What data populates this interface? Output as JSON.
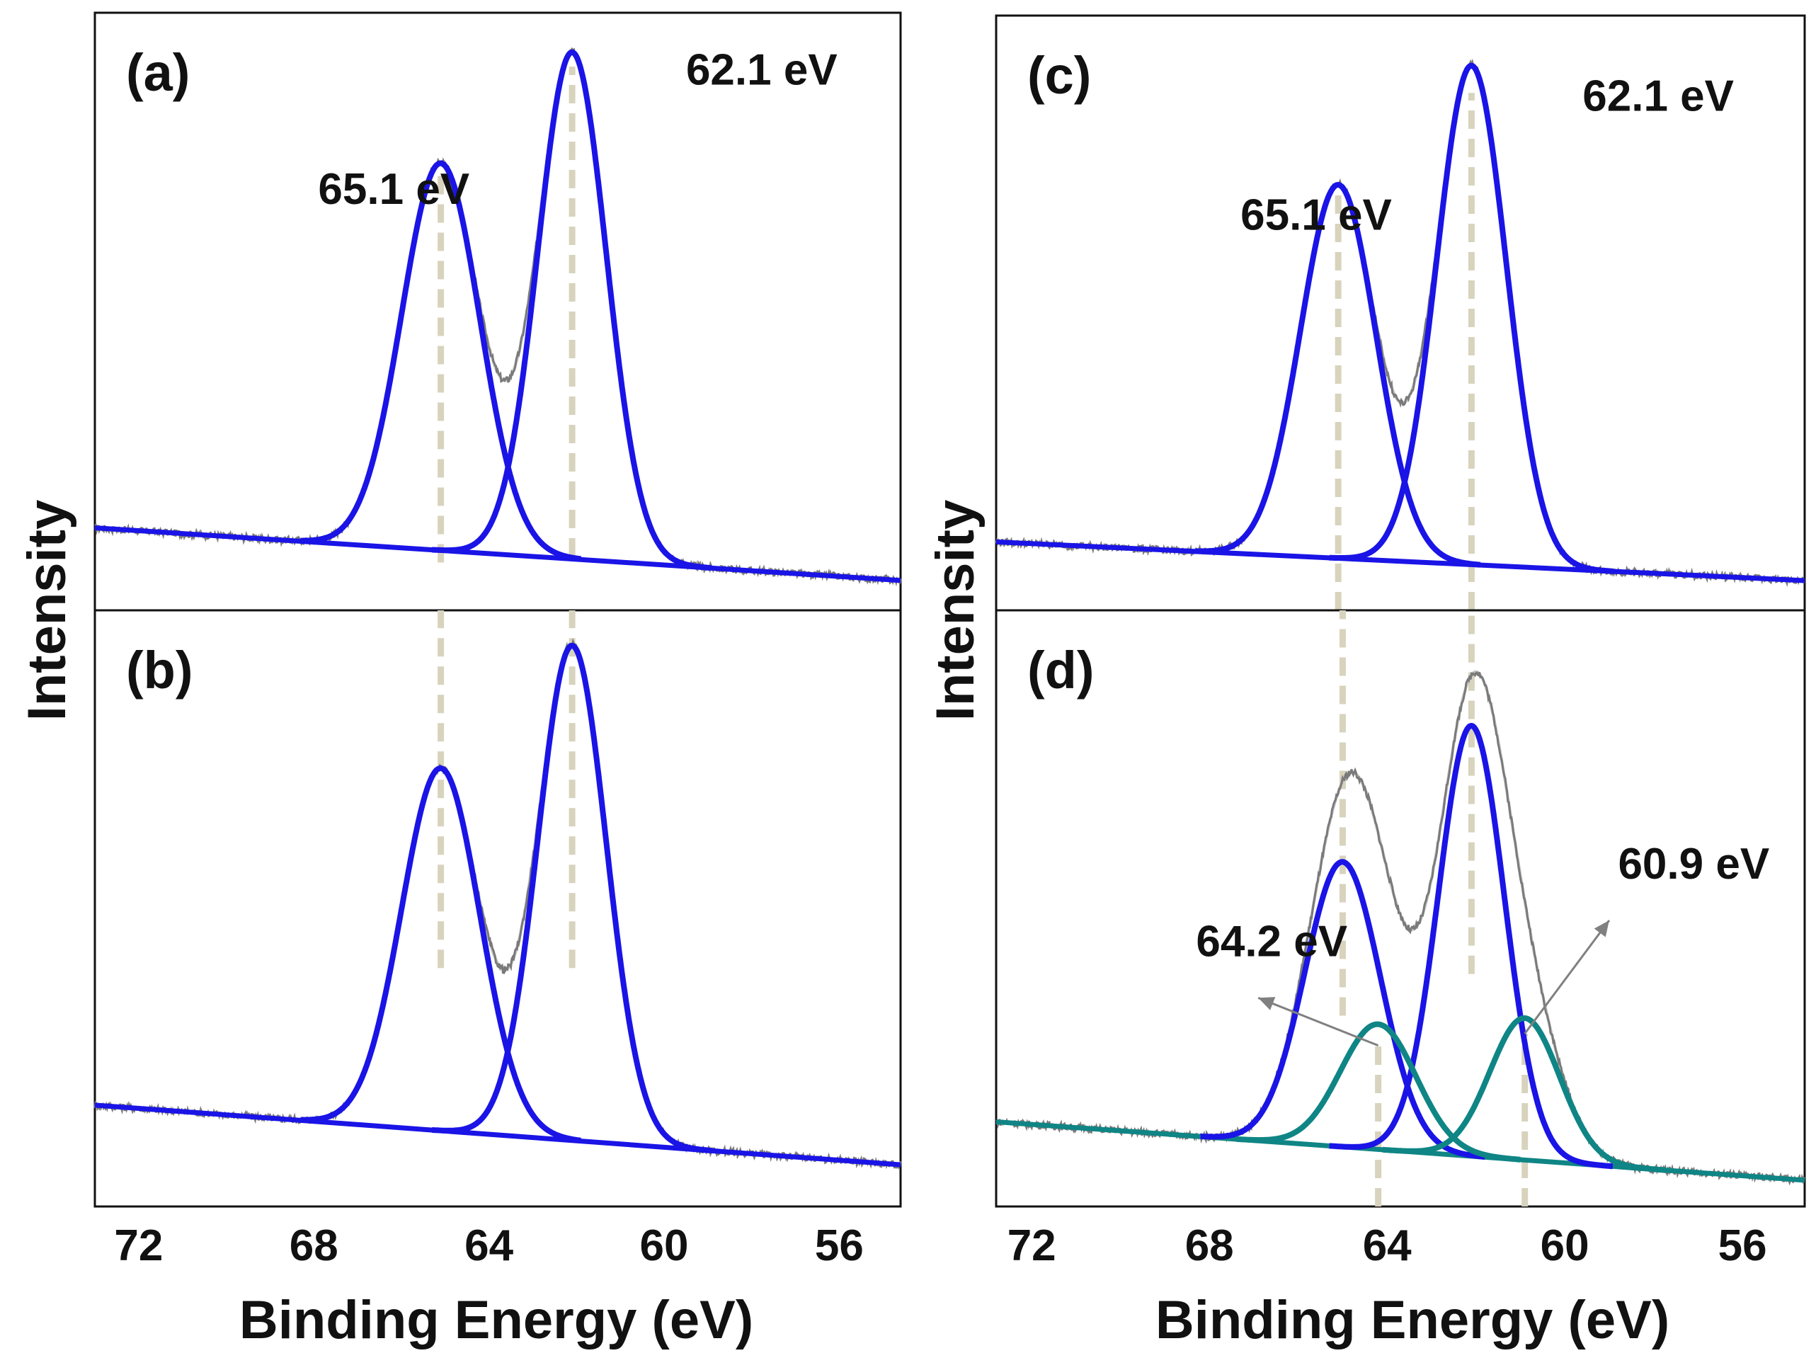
{
  "chart_data": [
    {
      "type": "line",
      "panel_label": "(a)",
      "x_reversed": true,
      "xlim": [
        73.0,
        54.6
      ],
      "ylim": [
        0,
        1
      ],
      "background": [
        [
          73.0,
          0.138
        ],
        [
          54.6,
          0.05
        ]
      ],
      "peaks": [
        {
          "name": "component 1",
          "center": 65.1,
          "height": 0.648,
          "fwhm": 2.1,
          "color": "#1a14e6"
        },
        {
          "name": "component 2",
          "center": 62.1,
          "height": 0.848,
          "fwhm": 1.84,
          "color": "#1a14e6"
        }
      ],
      "guide_lines": [
        {
          "x": 65.1,
          "y_range": [
            0.08,
            0.74
          ]
        },
        {
          "x": 62.1,
          "y_range": [
            0.09,
            0.91
          ]
        }
      ],
      "annotations": [
        {
          "text": "65.1 eV",
          "x": 67.9,
          "y": 0.68
        },
        {
          "text": "62.1 eV",
          "x": 59.5,
          "y": 0.88
        }
      ]
    },
    {
      "type": "line",
      "panel_label": "(b)",
      "x_reversed": true,
      "xlim": [
        73.0,
        54.6
      ],
      "ylim": [
        0,
        1
      ],
      "background": [
        [
          73.0,
          0.17
        ],
        [
          54.6,
          0.07
        ]
      ],
      "peaks": [
        {
          "name": "component 1",
          "center": 65.1,
          "height": 0.608,
          "fwhm": 2.1,
          "color": "#1a14e6"
        },
        {
          "name": "component 2",
          "center": 62.1,
          "height": 0.83,
          "fwhm": 1.84,
          "color": "#1a14e6"
        }
      ],
      "guide_lines": [
        {
          "x": 65.1,
          "y_range": [
            0.4,
            1.0
          ]
        },
        {
          "x": 62.1,
          "y_range": [
            0.4,
            1.0
          ]
        }
      ]
    },
    {
      "type": "line",
      "panel_label": "(c)",
      "x_reversed": true,
      "xlim": [
        72.8,
        54.6
      ],
      "ylim": [
        0,
        1
      ],
      "background": [
        [
          72.8,
          0.115
        ],
        [
          54.6,
          0.05
        ]
      ],
      "peaks": [
        {
          "name": "component 1",
          "center": 65.1,
          "height": 0.628,
          "fwhm": 2.0,
          "color": "#1a14e6"
        },
        {
          "name": "component 2",
          "center": 62.1,
          "height": 0.839,
          "fwhm": 1.85,
          "color": "#1a14e6"
        }
      ],
      "guide_lines": [
        {
          "x": 65.1,
          "y_range": [
            0.0,
            0.7
          ]
        },
        {
          "x": 62.1,
          "y_range": [
            0.0,
            0.87
          ]
        }
      ],
      "annotations": [
        {
          "text": "65.1 eV",
          "x": 67.3,
          "y": 0.64
        },
        {
          "text": "62.1 eV",
          "x": 59.6,
          "y": 0.84
        }
      ]
    },
    {
      "type": "line",
      "panel_label": "(d)",
      "x_reversed": true,
      "xlim": [
        72.8,
        54.6
      ],
      "xticks": [
        72,
        68,
        64,
        60,
        56
      ],
      "xlabel": "Binding Energy (eV)",
      "ylabel": "Intensity",
      "ylim": [
        0,
        1
      ],
      "background": [
        [
          72.8,
          0.142
        ],
        [
          54.6,
          0.044
        ]
      ],
      "peaks": [
        {
          "name": "component 1",
          "center": 65.0,
          "height": 0.478,
          "fwhm": 2.0,
          "color": "#1a14e6"
        },
        {
          "name": "component 2",
          "center": 62.1,
          "height": 0.722,
          "fwhm": 1.75,
          "color": "#1a14e6"
        },
        {
          "name": "component 3",
          "center": 64.2,
          "height": 0.21,
          "fwhm": 2.0,
          "color": "#0f8585"
        },
        {
          "name": "component 4",
          "center": 60.9,
          "height": 0.238,
          "fwhm": 1.85,
          "color": "#0f8585"
        }
      ],
      "guide_lines": [
        {
          "x": 65.0,
          "y_range": [
            0.32,
            1.0
          ]
        },
        {
          "x": 62.1,
          "y_range": [
            0.39,
            1.0
          ]
        },
        {
          "x": 64.2,
          "y_range": [
            0.0,
            0.27
          ]
        },
        {
          "x": 60.9,
          "y_range": [
            0.0,
            0.29
          ]
        }
      ],
      "annotations": [
        {
          "text": "64.2 eV",
          "x": 68.3,
          "y": 0.42
        },
        {
          "text": "60.9 eV",
          "x": 58.8,
          "y": 0.55
        }
      ],
      "arrows": [
        {
          "from": [
            64.2,
            0.27
          ],
          "to": [
            66.9,
            0.35
          ]
        },
        {
          "from": [
            60.9,
            0.29
          ],
          "to": [
            59.0,
            0.48
          ]
        }
      ]
    }
  ],
  "shared_axes": {
    "xlabel": "Binding Energy (eV)",
    "ylabel": "Intensity",
    "xticks": [
      72,
      68,
      64,
      60,
      56
    ]
  }
}
